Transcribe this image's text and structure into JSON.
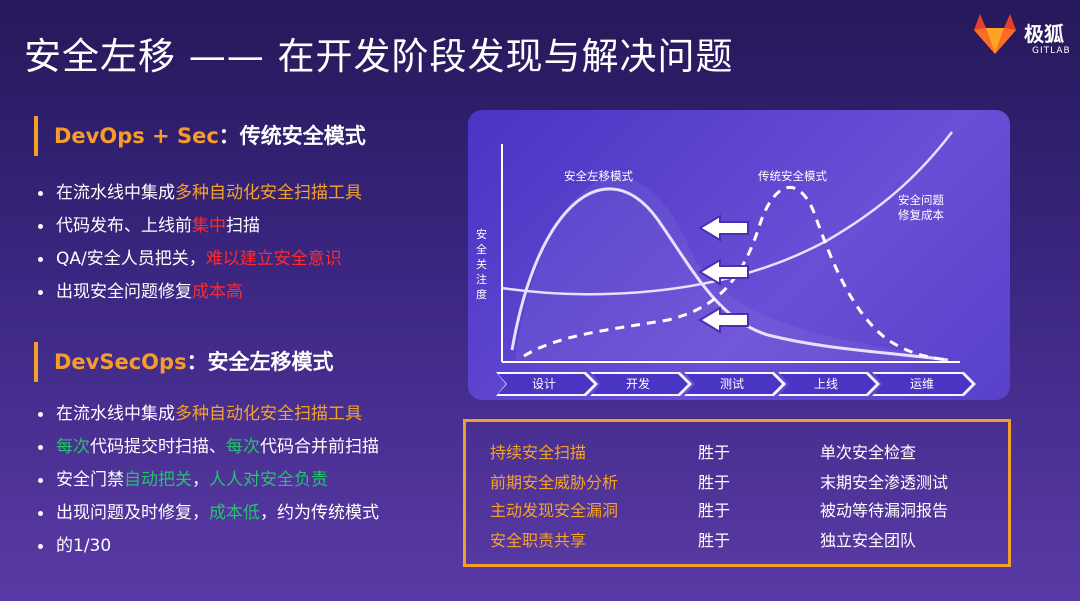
{
  "title": "安全左移 —— 在开发阶段发现与解决问题",
  "logo": {
    "brand": "极狐",
    "sub": "GITLAB"
  },
  "section1": {
    "head_orange": "DevOps + Sec",
    "head_white": "：传统安全模式",
    "items": [
      {
        "a": "在流水线中集成",
        "b": "多种自动化安全扫描工具",
        "c": ""
      },
      {
        "a": "代码发布、上线前",
        "b": "集中",
        "c": "扫描"
      },
      {
        "a": "QA/安全人员把关，",
        "b": "难以建立安全意识",
        "c": ""
      },
      {
        "a": "出现安全问题修复",
        "b": "成本高",
        "c": ""
      }
    ]
  },
  "section2": {
    "head_orange": "DevSecOps",
    "head_white": "：安全左移模式",
    "items": [
      {
        "a": "在流水线中集成",
        "b": "多种自动化安全扫描工具"
      },
      {
        "g1": "每次",
        "t1": "代码提交时扫描、",
        "g2": "每次",
        "t2": "代码合并前扫描"
      },
      {
        "a": "安全门禁",
        "g1": "自动把关",
        "t": "，",
        "g2": "人人对安全负责"
      },
      {
        "a": "出现问题及时修复，",
        "g": "成本低",
        "c": "，约为传统模式"
      },
      {
        "a": "的1/30"
      }
    ]
  },
  "chart": {
    "label_left": "安全左移模式",
    "label_right": "传统安全模式",
    "label_cost_1": "安全问题",
    "label_cost_2": "修复成本",
    "ylabel": [
      "安",
      "全",
      "关",
      "注",
      "度"
    ],
    "phases": [
      "设计",
      "开发",
      "测试",
      "上线",
      "运维"
    ]
  },
  "comparison": [
    {
      "left": "持续安全扫描",
      "mid": "胜于",
      "right": "单次安全检查"
    },
    {
      "left": "前期安全威胁分析",
      "mid": "胜于",
      "right": "末期安全渗透测试"
    },
    {
      "left": "主动发现安全漏洞",
      "mid": "胜于",
      "right": "被动等待漏洞报告"
    },
    {
      "left": "安全职责共享",
      "mid": "胜于",
      "right": "独立安全团队"
    }
  ],
  "colors": {
    "accent_orange": "#f5a326",
    "alert_red": "#ff2a2a",
    "ok_green": "#25c26d"
  }
}
